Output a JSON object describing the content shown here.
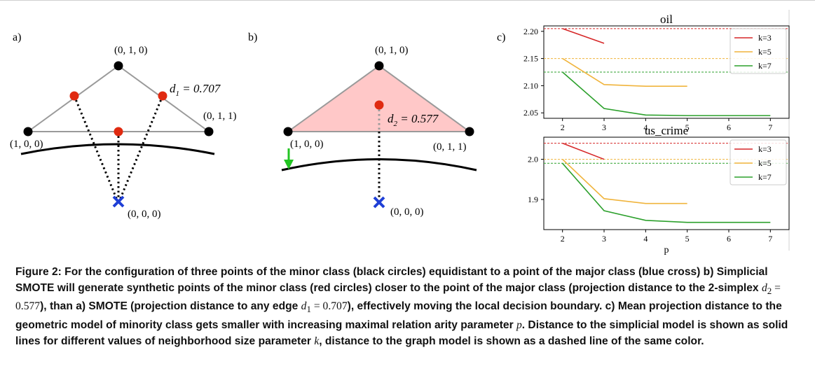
{
  "panel_a": {
    "label": "a)",
    "top": "(0, 1, 0)",
    "left": "(1, 0, 0)",
    "right": "(0, 1, 1)",
    "origin": "(0, 0, 0)",
    "distance": "d",
    "distance_sub": "1",
    "distance_value": " = 0.707"
  },
  "panel_b": {
    "label": "b)",
    "top": "(0, 1, 0)",
    "left": "(1, 0, 0)",
    "right": "(0, 1, 1)",
    "origin": "(0, 0, 0)",
    "distance": "d",
    "distance_sub": "2",
    "distance_value": " = 0.577"
  },
  "panel_c": {
    "label": "c)"
  },
  "colors": {
    "k3": "#d62728",
    "k5": "#f0b43c",
    "k7": "#2ca02c",
    "triangle_fill": "#ffc8c8",
    "major": "#1f3fd6",
    "synthetic": "#e02a10",
    "arrow": "#22c422"
  },
  "chart_data": [
    {
      "type": "line",
      "title": "oil",
      "xlabel": "",
      "ylabel": "",
      "x": [
        2,
        3,
        4,
        5,
        6,
        7
      ],
      "xticks": [
        "2",
        "3",
        "4",
        "5",
        "6",
        "7"
      ],
      "yticks": [
        "2.05",
        "2.10",
        "2.15",
        "2.20"
      ],
      "ylim": [
        2.04,
        2.21
      ],
      "xlim": [
        1.55,
        7.45
      ],
      "series": [
        {
          "name": "k=3",
          "x": [
            2,
            3
          ],
          "values": [
            2.205,
            2.178
          ],
          "color": "#d62728"
        },
        {
          "name": "k=5",
          "x": [
            2,
            3,
            4,
            5
          ],
          "values": [
            2.15,
            2.102,
            2.099,
            2.099
          ],
          "color": "#f0b43c"
        },
        {
          "name": "k=7",
          "x": [
            2,
            3,
            4,
            5,
            6,
            7
          ],
          "values": [
            2.125,
            2.058,
            2.046,
            2.045,
            2.045,
            2.045
          ],
          "color": "#2ca02c"
        }
      ],
      "reference_lines": [
        {
          "y": 2.205,
          "color": "#d62728"
        },
        {
          "y": 2.15,
          "color": "#f0b43c"
        },
        {
          "y": 2.125,
          "color": "#2ca02c"
        }
      ],
      "legend": "top-right"
    },
    {
      "type": "line",
      "title": "us_crime",
      "xlabel": "p",
      "ylabel": "",
      "x": [
        2,
        3,
        4,
        5,
        6,
        7
      ],
      "xticks": [
        "2",
        "3",
        "4",
        "5",
        "6",
        "7"
      ],
      "yticks": [
        "1.9",
        "2.0"
      ],
      "ylim": [
        1.825,
        2.055
      ],
      "xlim": [
        1.55,
        7.45
      ],
      "series": [
        {
          "name": "k=3",
          "x": [
            2,
            3
          ],
          "values": [
            2.04,
            2.0
          ],
          "color": "#d62728"
        },
        {
          "name": "k=5",
          "x": [
            2,
            3,
            4,
            5
          ],
          "values": [
            2.0,
            1.902,
            1.89,
            1.89
          ],
          "color": "#f0b43c"
        },
        {
          "name": "k=7",
          "x": [
            2,
            3,
            4,
            5,
            6,
            7
          ],
          "values": [
            1.99,
            1.872,
            1.848,
            1.843,
            1.843,
            1.843
          ],
          "color": "#2ca02c"
        }
      ],
      "reference_lines": [
        {
          "y": 2.04,
          "color": "#d62728"
        },
        {
          "y": 2.0,
          "color": "#f0b43c"
        },
        {
          "y": 1.99,
          "color": "#2ca02c"
        }
      ],
      "legend": "top-right"
    }
  ],
  "caption": {
    "part1": "Figure 2: For the configuration of three points of the minor class (black circles) equidistant to a point of the major class (blue cross) b) Simplicial SMOTE will generate synthetic points of the minor class (red circles) closer to the point of the major class (projection distance to the 2-simplex ",
    "math1_var": "d",
    "math1_sub": "2",
    "math1_val": " = 0.577",
    "part2": "), than a) SMOTE (projection distance to any edge ",
    "math2_var": "d",
    "math2_sub": "1",
    "math2_val": " = 0.707",
    "part3": "), effectively moving the local decision boundary. c) Mean projection distance to the geometric model of minority class gets smaller with increasing maximal relation arity parameter ",
    "param_p": "p",
    "part4": ". Distance to the simplicial model is shown as solid lines for different values of neighborhood size parameter ",
    "param_k": "k",
    "part5": ", distance to the graph model is shown as a dashed line of the same color."
  }
}
